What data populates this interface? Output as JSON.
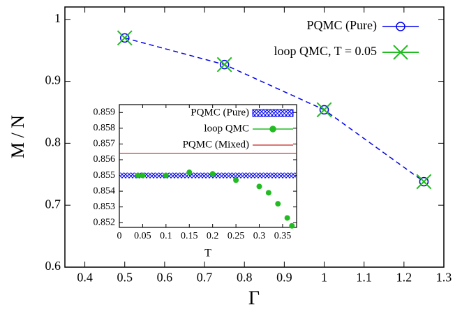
{
  "chart_data": [
    {
      "type": "line",
      "xlabel": "Γ",
      "ylabel": "M / N",
      "x": [
        0.5,
        0.75,
        1,
        1.25
      ],
      "xlim": [
        0.35,
        1.3
      ],
      "ylim": [
        0.6,
        1.02
      ],
      "xticks": [
        0.4,
        0.5,
        0.6,
        0.7,
        0.8,
        0.9,
        1,
        1.1,
        1.2,
        1.3
      ],
      "yticks": [
        0.6,
        0.7,
        0.8,
        0.9,
        1
      ],
      "series": [
        {
          "name": "PQMC (Pure)",
          "color": "#0000ee",
          "marker": "circle",
          "line": "dashed",
          "values": [
            0.97,
            0.927,
            0.854,
            0.738
          ]
        },
        {
          "name": "loop QMC, T = 0.05",
          "color": "#22bb22",
          "marker": "x",
          "line": "none",
          "values": [
            0.97,
            0.927,
            0.854,
            0.738
          ]
        }
      ]
    },
    {
      "type": "line",
      "xlabel": "T",
      "xlim": [
        0,
        0.38
      ],
      "ylim": [
        0.8517,
        0.8595
      ],
      "xticks": [
        0,
        0.05,
        0.1,
        0.15,
        0.2,
        0.25,
        0.3,
        0.35
      ],
      "yticks": [
        0.852,
        0.853,
        0.854,
        0.855,
        0.856,
        0.857,
        0.858,
        0.859
      ],
      "series": [
        {
          "name": "PQMC (Pure)",
          "color": "#0000ee",
          "fill": "hatch",
          "value": 0.855
        },
        {
          "name": "loop QMC",
          "color": "#22bb22",
          "marker": "dot",
          "line": "none",
          "x": [
            0.04,
            0.05,
            0.1,
            0.15,
            0.2,
            0.25,
            0.3,
            0.32,
            0.34,
            0.36,
            0.37
          ],
          "values": [
            0.855,
            0.855,
            0.855,
            0.8552,
            0.8551,
            0.8547,
            0.8543,
            0.8539,
            0.8532,
            0.8523,
            0.8518
          ]
        },
        {
          "name": "PQMC (Mixed)",
          "color": "#cc2222",
          "value": 0.8564
        }
      ]
    }
  ]
}
